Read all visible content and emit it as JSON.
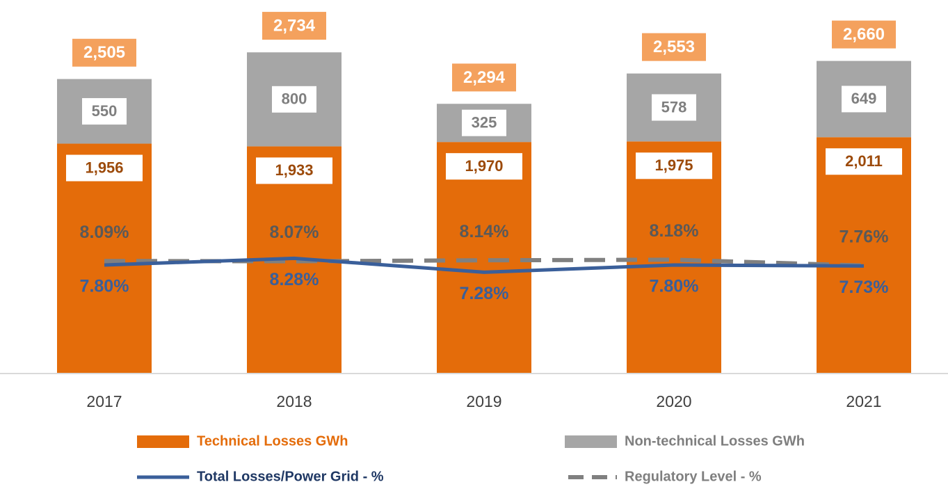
{
  "chart_data": {
    "type": "stacked_bar_line",
    "categories": [
      "2017",
      "2018",
      "2019",
      "2020",
      "2021"
    ],
    "series": [
      {
        "name": "Technical Losses GWh",
        "color": "#e46c0a",
        "values": [
          1956,
          1933,
          1970,
          1975,
          2011
        ],
        "value_labels": [
          "1,956",
          "1,933",
          "1,970",
          "1,975",
          "2,011"
        ]
      },
      {
        "name": "Non-technical Losses GWh",
        "color": "#a6a6a6",
        "values": [
          550,
          800,
          325,
          578,
          649
        ]
      },
      {
        "name": "Total Losses/Power Grid - %",
        "color": "#3a5f9a",
        "axis": "y2",
        "type": "line",
        "values": [
          7.8,
          8.28,
          7.28,
          7.8,
          7.73
        ],
        "value_labels": [
          "7.80%",
          "8.28%",
          "7.28%",
          "7.80%",
          "7.73%"
        ]
      },
      {
        "name": "Regulatory Level - %",
        "color": "#808080",
        "axis": "y2",
        "type": "line",
        "dashed": true,
        "values": [
          8.09,
          8.07,
          8.14,
          8.18,
          7.76
        ],
        "value_labels": [
          "8.09%",
          "8.07%",
          "8.14%",
          "8.18%",
          "7.76%"
        ]
      }
    ],
    "totals": [
      2505,
      2734,
      2294,
      2553,
      2660
    ],
    "total_labels": [
      "2,505",
      "2,734",
      "2,294",
      "2,553",
      "2,660"
    ],
    "total_color": "#f4a15d",
    "ylim": [
      0,
      3060
    ],
    "y2lim": [
      0,
      25.85
    ]
  }
}
